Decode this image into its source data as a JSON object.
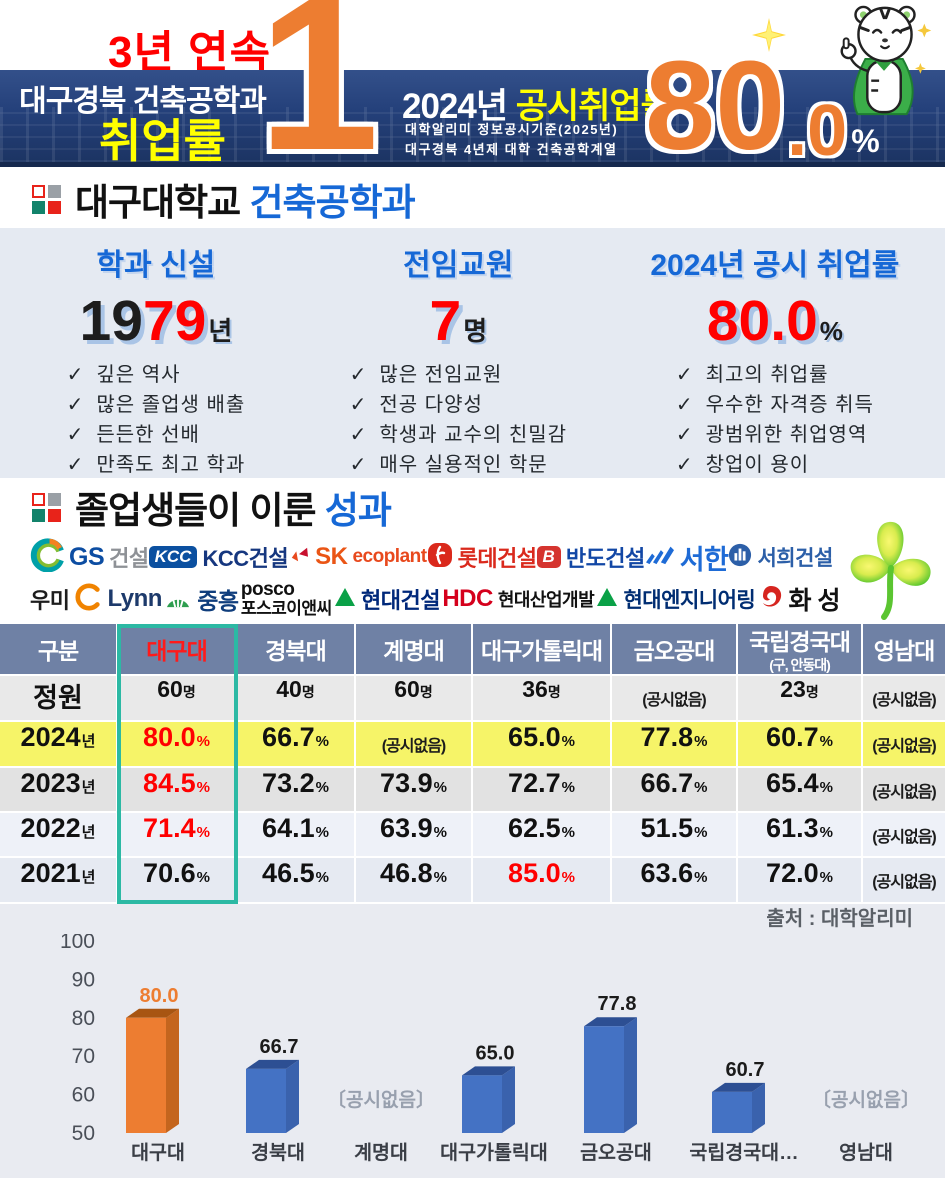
{
  "header": {
    "streak": "3년 연속",
    "left_title": "대구경북 건축공학과",
    "left_sub": "취업률",
    "rank": "1",
    "year_label": "2024년 ",
    "rate_label": "공시취업률",
    "source_line1": "대학알리미 정보공시기준(2025년)",
    "source_line2": "대구경북 4년제 대학 건축공학계열",
    "rate_main": "80",
    "rate_dec": ".0",
    "rate_unit": "%"
  },
  "sections": {
    "dept": {
      "title_black": "대구대학교 ",
      "title_blue": "건축공학과",
      "columns": [
        {
          "label": "학과 신설",
          "value_black": "19",
          "value_red": "79",
          "unit": "년",
          "checks": [
            "깊은 역사",
            "많은 졸업생 배출",
            "든든한 선배",
            "만족도 최고 학과"
          ]
        },
        {
          "label": "전임교원",
          "value_black": "",
          "value_red": "7",
          "unit": "명",
          "checks": [
            "많은 전임교원",
            "전공 다양성",
            "학생과 교수의 친밀감",
            "매우 실용적인 학문"
          ]
        },
        {
          "label": "2024년 공시 취업률",
          "value_black": "",
          "value_red": "80.0",
          "unit": "%",
          "checks": [
            "최고의 취업률",
            "우수한 자격증 취득",
            "광범위한 취업영역",
            "창업이 용이"
          ]
        }
      ]
    },
    "results": {
      "title_black": "졸업생들이 이룬 ",
      "title_blue": "성과",
      "logos_row1": [
        {
          "name": "gs-construction",
          "icon": "gs-swirl-icon",
          "parts": [
            {
              "t": "GS",
              "c": "#0C4DA2",
              "s": 25
            },
            {
              "t": "건설",
              "c": "#8E9196",
              "s": 22
            }
          ]
        },
        {
          "name": "kcc-construction",
          "parts": [
            {
              "t": "KCC",
              "c": "#ffffff",
              "bg": "#0B50A0",
              "s": 17
            },
            {
              "t": "KCC건설",
              "c": "#16377F",
              "s": 22
            }
          ]
        },
        {
          "name": "sk-ecoplant",
          "icon": "sk-butterfly-icon",
          "parts": [
            {
              "t": "SK",
              "c": "#EA5515",
              "s": 24
            },
            {
              "t": "ecoplant",
              "c": "#E8491D",
              "s": 19
            }
          ]
        },
        {
          "name": "lotte-construction",
          "icon": "lotte-circle-icon",
          "parts": [
            {
              "t": "롯데건설",
              "c": "#DA291C",
              "s": 22
            }
          ]
        },
        {
          "name": "bando-construction",
          "parts": [
            {
              "t": "B",
              "c": "#ffffff",
              "bg": "#D5342F",
              "s": 17
            },
            {
              "t": "반도건설",
              "c": "#1247A5",
              "s": 22
            }
          ]
        },
        {
          "name": "seohan",
          "icon": "seohan-wave-icon",
          "parts": [
            {
              "t": "서한",
              "c": "#1E6BD6",
              "s": 27
            }
          ]
        },
        {
          "name": "seohee-construction",
          "icon": "seohee-circle-icon",
          "parts": [
            {
              "t": "서희건설",
              "c": "#2C5FA8",
              "s": 21
            }
          ]
        }
      ],
      "logos_row2": [
        {
          "name": "woomi-lynn",
          "icon": "woomi-c-icon",
          "parts": [
            {
              "t": "우미",
              "c": "#1d1d1d",
              "s": 22,
              "before": true
            },
            {
              "t": "Lynn",
              "c": "#1D3A6B",
              "s": 24
            }
          ]
        },
        {
          "name": "joongheung",
          "icon": "joongheung-shell-icon",
          "parts": [
            {
              "t": "중흥",
              "c": "#0F3D7C",
              "s": 23
            }
          ]
        },
        {
          "name": "posco-enc",
          "stack": true,
          "parts": [
            {
              "t": "posco",
              "c": "#111111",
              "s": 19
            },
            {
              "t": "포스코이앤씨",
              "c": "#111111",
              "s": 17
            }
          ]
        },
        {
          "name": "hyundai-enc",
          "icon": "green-triangle-icon",
          "parts": [
            {
              "t": "현대건설",
              "c": "#00287A",
              "s": 22
            }
          ]
        },
        {
          "name": "hdc-hyundai",
          "parts": [
            {
              "t": "HDC",
              "c": "#D5001C",
              "s": 24
            },
            {
              "t": "현대산업개발",
              "c": "#111111",
              "s": 18
            }
          ]
        },
        {
          "name": "hyundai-engineering",
          "icon": "green-triangle-icon",
          "parts": [
            {
              "t": "현대엔지니어링",
              "c": "#002D72",
              "s": 21
            }
          ]
        },
        {
          "name": "hwasung",
          "icon": "hwasung-swirl-icon",
          "parts": [
            {
              "t": "화 성",
              "c": "#111111",
              "s": 25
            }
          ]
        }
      ]
    }
  },
  "table": {
    "col_headers": [
      {
        "label": "구분"
      },
      {
        "label": "대구대",
        "highlight": true
      },
      {
        "label": "경북대"
      },
      {
        "label": "계명대"
      },
      {
        "label": "대구가톨릭대"
      },
      {
        "label": "금오공대"
      },
      {
        "label": "국립경국대",
        "sub": "(구, 안동대)"
      },
      {
        "label": "영남대"
      }
    ],
    "rows": [
      {
        "label": "정원",
        "unit": "",
        "kind": "cap",
        "cells": [
          {
            "v": "60",
            "u": "명"
          },
          {
            "v": "40",
            "u": "명"
          },
          {
            "v": "60",
            "u": "명"
          },
          {
            "v": "36",
            "u": "명"
          },
          {
            "v": "(공시없음)"
          },
          {
            "v": "23",
            "u": "명"
          },
          {
            "v": "(공시없음)"
          }
        ]
      },
      {
        "label": "2024",
        "unit": "년",
        "kind": "2024",
        "cells": [
          {
            "v": "80.0",
            "u": "%",
            "red": true
          },
          {
            "v": "66.7",
            "u": "%"
          },
          {
            "v": "(공시없음)"
          },
          {
            "v": "65.0",
            "u": "%"
          },
          {
            "v": "77.8",
            "u": "%"
          },
          {
            "v": "60.7",
            "u": "%"
          },
          {
            "v": "(공시없음)"
          }
        ]
      },
      {
        "label": "2023",
        "unit": "년",
        "kind": "2023",
        "cells": [
          {
            "v": "84.5",
            "u": "%",
            "red": true
          },
          {
            "v": "73.2",
            "u": "%"
          },
          {
            "v": "73.9",
            "u": "%"
          },
          {
            "v": "72.7",
            "u": "%"
          },
          {
            "v": "66.7",
            "u": "%"
          },
          {
            "v": "65.4",
            "u": "%"
          },
          {
            "v": "(공시없음)"
          }
        ]
      },
      {
        "label": "2022",
        "unit": "년",
        "kind": "2022",
        "cells": [
          {
            "v": "71.4",
            "u": "%",
            "red": true
          },
          {
            "v": "64.1",
            "u": "%"
          },
          {
            "v": "63.9",
            "u": "%"
          },
          {
            "v": "62.5",
            "u": "%"
          },
          {
            "v": "51.5",
            "u": "%"
          },
          {
            "v": "61.3",
            "u": "%"
          },
          {
            "v": "(공시없음)"
          }
        ]
      },
      {
        "label": "2021",
        "unit": "년",
        "kind": "2021",
        "cells": [
          {
            "v": "70.6",
            "u": "%"
          },
          {
            "v": "46.5",
            "u": "%"
          },
          {
            "v": "46.8",
            "u": "%"
          },
          {
            "v": "85.0",
            "u": "%",
            "red": true
          },
          {
            "v": "63.6",
            "u": "%"
          },
          {
            "v": "72.0",
            "u": "%"
          },
          {
            "v": "(공시없음)"
          }
        ]
      }
    ]
  },
  "source": {
    "label": "출처 : 대학알리미"
  },
  "chart_data": {
    "type": "bar",
    "title": "",
    "categories": [
      "대구대",
      "경북대",
      "계명대",
      "대구가톨릭대",
      "금오공대",
      "국립경국대…",
      "영남대"
    ],
    "values": [
      80.0,
      66.7,
      null,
      65.0,
      77.8,
      60.7,
      null
    ],
    "null_label": "〔공시없음〕",
    "yticks": [
      50,
      60,
      70,
      80,
      90,
      100
    ],
    "ylim": [
      50,
      100
    ],
    "grid": false,
    "legend": "none",
    "highlight_category": "대구대"
  },
  "colors": {
    "accent_orange": "#ED7D31",
    "brand_navy": "#24407A",
    "highlight_red": "#FF0000",
    "heading_blue": "#1668D6",
    "table_header_bg": "#6F81A5",
    "highlight_teal": "#2CB9A4",
    "row_yellow": "#F6F468",
    "bar_blue": "#4472C4"
  }
}
